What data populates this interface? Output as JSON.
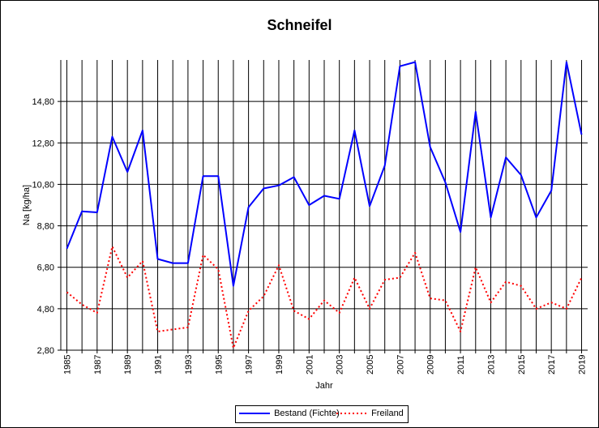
{
  "chart_data": {
    "type": "line",
    "title": "Schneifel",
    "xlabel": "Jahr",
    "ylabel": "Na [kg/ha]",
    "xlim": [
      1984.6,
      2019.4
    ],
    "ylim": [
      2.8,
      16.8
    ],
    "yticks": [
      "2,80",
      "4,80",
      "6,80",
      "8,80",
      "10,80",
      "12,80",
      "14,80"
    ],
    "ytick_values": [
      2.8,
      4.8,
      6.8,
      8.8,
      10.8,
      12.8,
      14.8
    ],
    "xticks": [
      "1985",
      "1987",
      "1989",
      "1991",
      "1993",
      "1995",
      "1997",
      "1999",
      "2001",
      "2003",
      "2005",
      "2007",
      "2009",
      "2011",
      "2013",
      "2015",
      "2017",
      "2019"
    ],
    "grid": true,
    "legend_position": "bottom",
    "x": [
      1985,
      1986,
      1987,
      1988,
      1989,
      1990,
      1991,
      1992,
      1993,
      1994,
      1995,
      1996,
      1997,
      1998,
      1999,
      2000,
      2001,
      2002,
      2003,
      2004,
      2005,
      2006,
      2007,
      2008,
      2009,
      2010,
      2011,
      2012,
      2013,
      2014,
      2015,
      2016,
      2017,
      2018,
      2019
    ],
    "series": [
      {
        "name": "Bestand (Fichte)",
        "color": "#0000ff",
        "style": "solid",
        "values": [
          7.7,
          9.5,
          9.45,
          13.1,
          11.4,
          13.4,
          7.2,
          7.0,
          7.0,
          11.2,
          11.2,
          5.9,
          9.7,
          10.6,
          10.75,
          11.15,
          9.8,
          10.25,
          10.1,
          13.4,
          9.75,
          11.7,
          16.5,
          16.7,
          12.6,
          10.9,
          8.5,
          14.3,
          9.2,
          12.1,
          11.25,
          9.2,
          10.5,
          16.7,
          13.2
        ]
      },
      {
        "name": "Freiland",
        "color": "#ff0000",
        "style": "dotted",
        "values": [
          5.6,
          5.0,
          4.6,
          7.8,
          6.3,
          7.1,
          3.7,
          3.8,
          3.9,
          7.4,
          6.7,
          2.9,
          4.7,
          5.4,
          6.9,
          4.7,
          4.3,
          5.2,
          4.6,
          6.3,
          4.8,
          6.2,
          6.3,
          7.5,
          5.3,
          5.2,
          3.7,
          6.8,
          5.1,
          6.1,
          5.9,
          4.8,
          5.1,
          4.8,
          6.3
        ]
      }
    ]
  }
}
